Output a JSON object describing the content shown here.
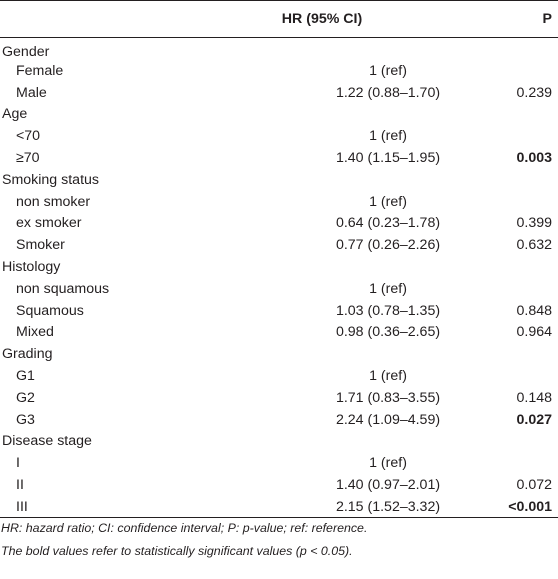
{
  "header": {
    "col_variable": "",
    "col_hr": "HR (95% CI)",
    "col_p": "P"
  },
  "rows": [
    {
      "kind": "group",
      "label": "Gender",
      "hr": "",
      "p": "",
      "bold": false
    },
    {
      "kind": "sub",
      "label": "Female",
      "hr": "1 (ref)",
      "p": "",
      "bold": false
    },
    {
      "kind": "sub",
      "label": "Male",
      "hr": "1.22 (0.88–1.70)",
      "p": "0.239",
      "bold": false
    },
    {
      "kind": "group",
      "label": "Age",
      "hr": "",
      "p": "",
      "bold": false
    },
    {
      "kind": "sub",
      "label": "<70",
      "hr": "1 (ref)",
      "p": "",
      "bold": false
    },
    {
      "kind": "sub",
      "label": "≥70",
      "hr": "1.40 (1.15–1.95)",
      "p": "0.003",
      "bold": true
    },
    {
      "kind": "group",
      "label": "Smoking status",
      "hr": "",
      "p": "",
      "bold": false
    },
    {
      "kind": "sub",
      "label": "non smoker",
      "hr": "1 (ref)",
      "p": "",
      "bold": false
    },
    {
      "kind": "sub",
      "label": "ex smoker",
      "hr": "0.64 (0.23–1.78)",
      "p": "0.399",
      "bold": false
    },
    {
      "kind": "sub",
      "label": "Smoker",
      "hr": "0.77 (0.26–2.26)",
      "p": "0.632",
      "bold": false
    },
    {
      "kind": "group",
      "label": "Histology",
      "hr": "",
      "p": "",
      "bold": false
    },
    {
      "kind": "sub",
      "label": "non squamous",
      "hr": "1 (ref)",
      "p": "",
      "bold": false
    },
    {
      "kind": "sub",
      "label": "Squamous",
      "hr": "1.03 (0.78–1.35)",
      "p": "0.848",
      "bold": false
    },
    {
      "kind": "sub",
      "label": "Mixed",
      "hr": "0.98 (0.36–2.65)",
      "p": "0.964",
      "bold": false
    },
    {
      "kind": "group",
      "label": "Grading",
      "hr": "",
      "p": "",
      "bold": false
    },
    {
      "kind": "sub",
      "label": "G1",
      "hr": "1 (ref)",
      "p": "",
      "bold": false
    },
    {
      "kind": "sub",
      "label": "G2",
      "hr": "1.71 (0.83–3.55)",
      "p": "0.148",
      "bold": false
    },
    {
      "kind": "sub",
      "label": "G3",
      "hr": "2.24 (1.09–4.59)",
      "p": "0.027",
      "bold": true
    },
    {
      "kind": "group",
      "label": "Disease stage",
      "hr": "",
      "p": "",
      "bold": false
    },
    {
      "kind": "sub",
      "label": "I",
      "hr": "1 (ref)",
      "p": "",
      "bold": false
    },
    {
      "kind": "sub",
      "label": "II",
      "hr": "1.40 (0.97–2.01)",
      "p": "0.072",
      "bold": false
    },
    {
      "kind": "sub",
      "label": "III",
      "hr": "2.15 (1.52–3.32)",
      "p": "<0.001",
      "bold": true
    }
  ],
  "notes": {
    "line1": "HR: hazard ratio; CI: confidence interval; P: p-value; ref: reference.",
    "line2": "The bold values refer to statistically significant values (p < 0.05)."
  }
}
